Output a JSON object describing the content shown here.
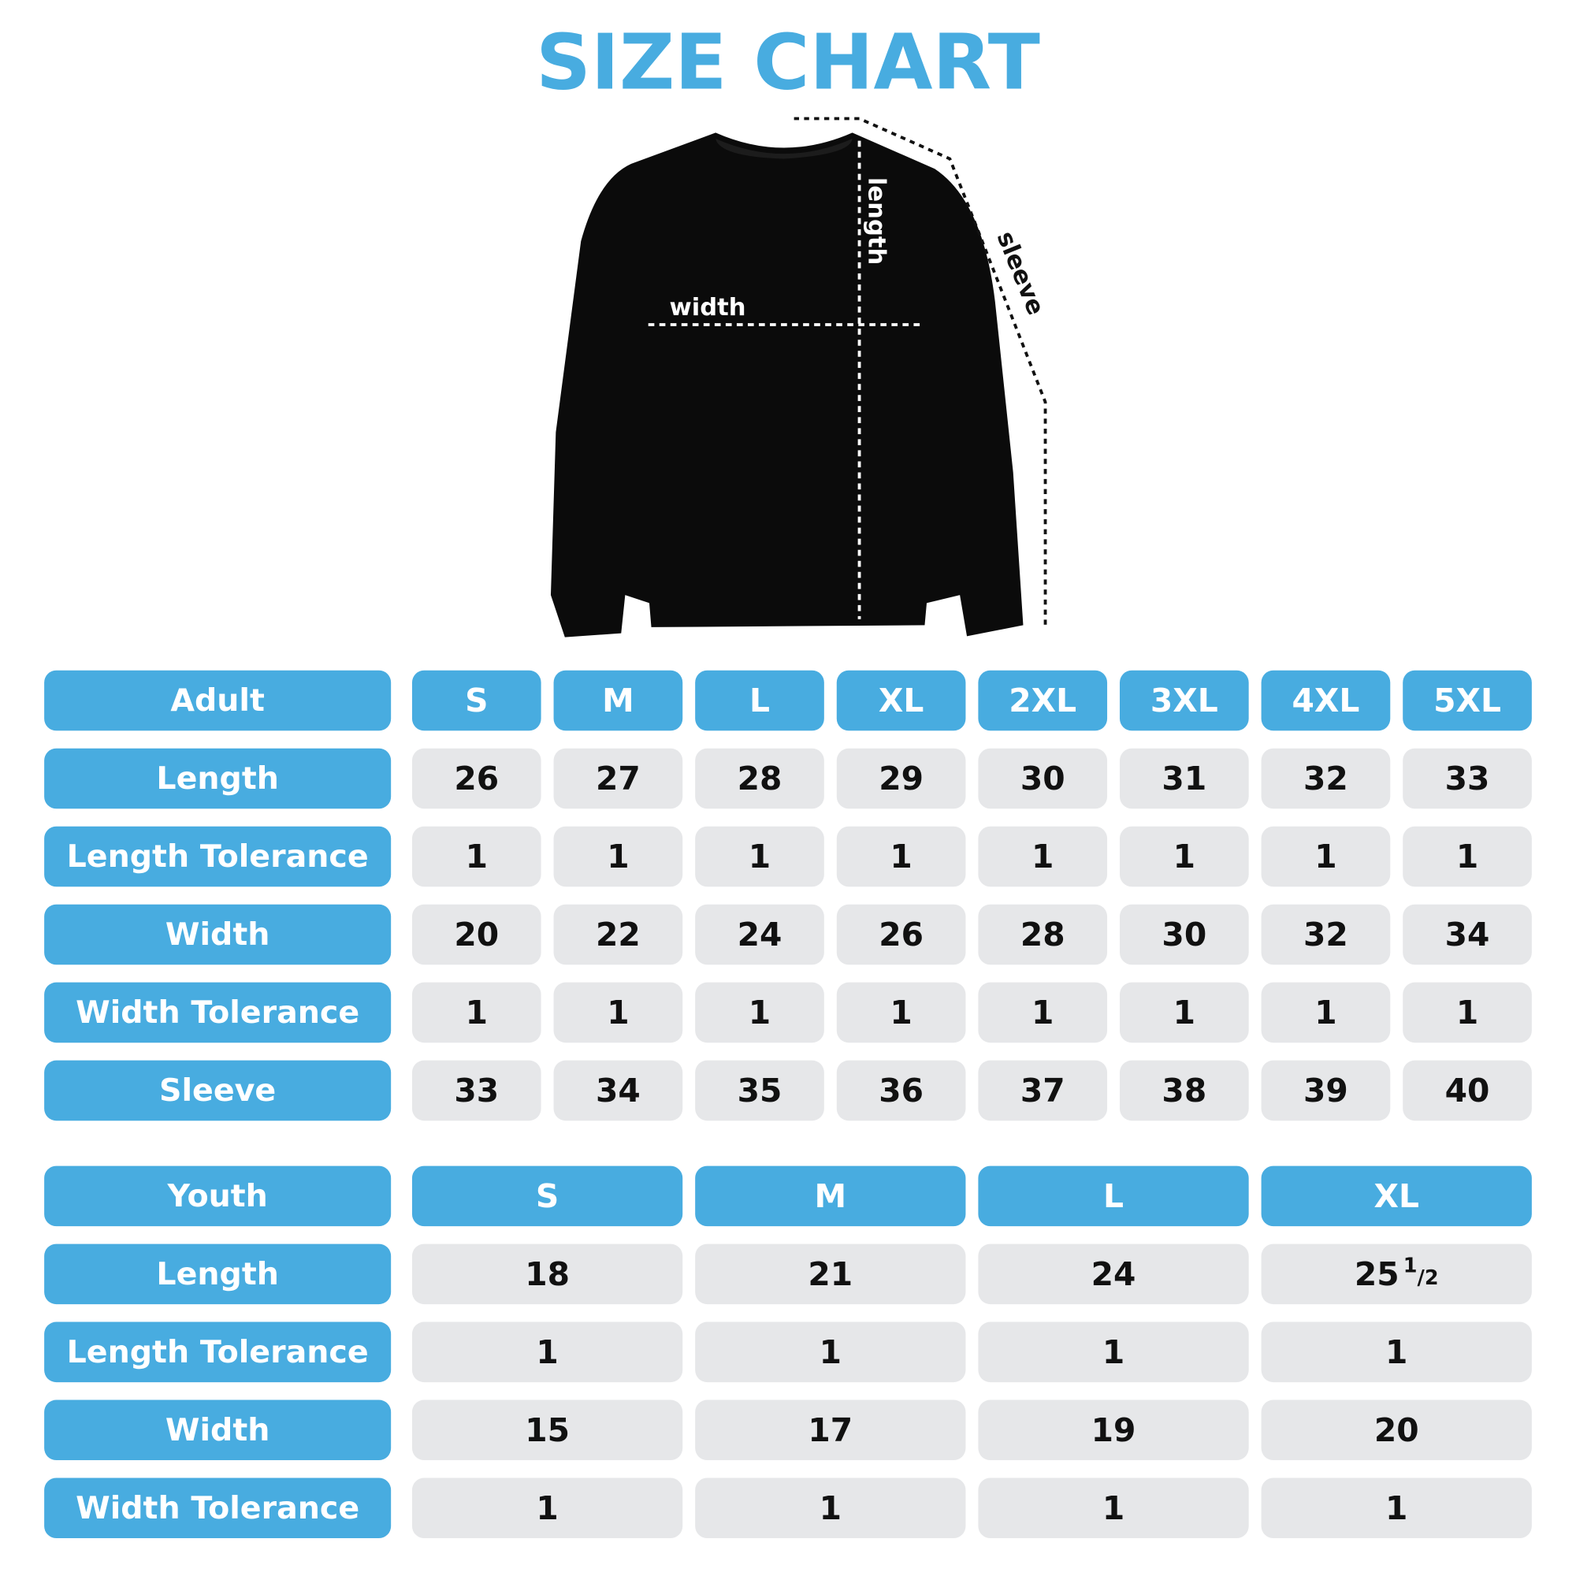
{
  "title": "SIZE CHART",
  "diagram": {
    "width_label": "width",
    "length_label": "length",
    "sleeve_label": "sleeve"
  },
  "adult_table": {
    "header": [
      "Adult",
      "S",
      "M",
      "L",
      "XL",
      "2XL",
      "3XL",
      "4XL",
      "5XL"
    ],
    "rows": [
      [
        "Length",
        "26",
        "27",
        "28",
        "29",
        "30",
        "31",
        "32",
        "33"
      ],
      [
        "Length Tolerance",
        "1",
        "1",
        "1",
        "1",
        "1",
        "1",
        "1",
        "1"
      ],
      [
        "Width",
        "20",
        "22",
        "24",
        "26",
        "28",
        "30",
        "32",
        "34"
      ],
      [
        "Width Tolerance",
        "1",
        "1",
        "1",
        "1",
        "1",
        "1",
        "1",
        "1"
      ],
      [
        "Sleeve",
        "33",
        "34",
        "35",
        "36",
        "37",
        "38",
        "39",
        "40"
      ]
    ]
  },
  "youth_table": {
    "header": [
      "Youth",
      "S",
      "M",
      "L",
      "XL"
    ],
    "rows": [
      [
        "Length",
        "18",
        "21",
        "24",
        {
          "whole": "25",
          "fraction": [
            "1",
            "/2"
          ]
        }
      ],
      [
        "Length Tolerance",
        "1",
        "1",
        "1",
        "1"
      ],
      [
        "Width",
        "15",
        "17",
        "19",
        "20"
      ],
      [
        "Width Tolerance",
        "1",
        "1",
        "1",
        "1"
      ]
    ]
  }
}
